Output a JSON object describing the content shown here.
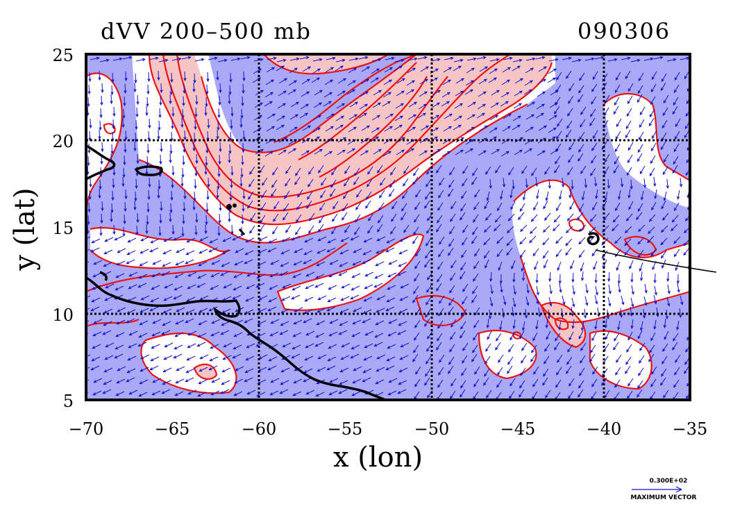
{
  "title_left": "dVV 200–500 mb",
  "title_right": "090306",
  "xlabel": "x (lon)",
  "ylabel": "y (lat)",
  "x_ticks": [
    "−70",
    "−65",
    "−60",
    "−55",
    "−50",
    "−45",
    "−40",
    "−35"
  ],
  "y_ticks": [
    "25",
    "20",
    "15",
    "10",
    "5"
  ],
  "legend": {
    "value": "0.300E+02",
    "label": "MAXIMUM VECTOR"
  },
  "colors": {
    "negative_fill": "#a9a9f5",
    "positive_fill": "#f5c4c4",
    "contour": "#ee1111",
    "vector": "#1111cc",
    "coast": "#000000"
  },
  "map_data": {
    "lon_range": [
      -70,
      -35
    ],
    "lat_range": [
      5,
      25
    ],
    "grid_lons": [
      -60,
      -50,
      -40
    ],
    "grid_lats": [
      10,
      20
    ]
  }
}
